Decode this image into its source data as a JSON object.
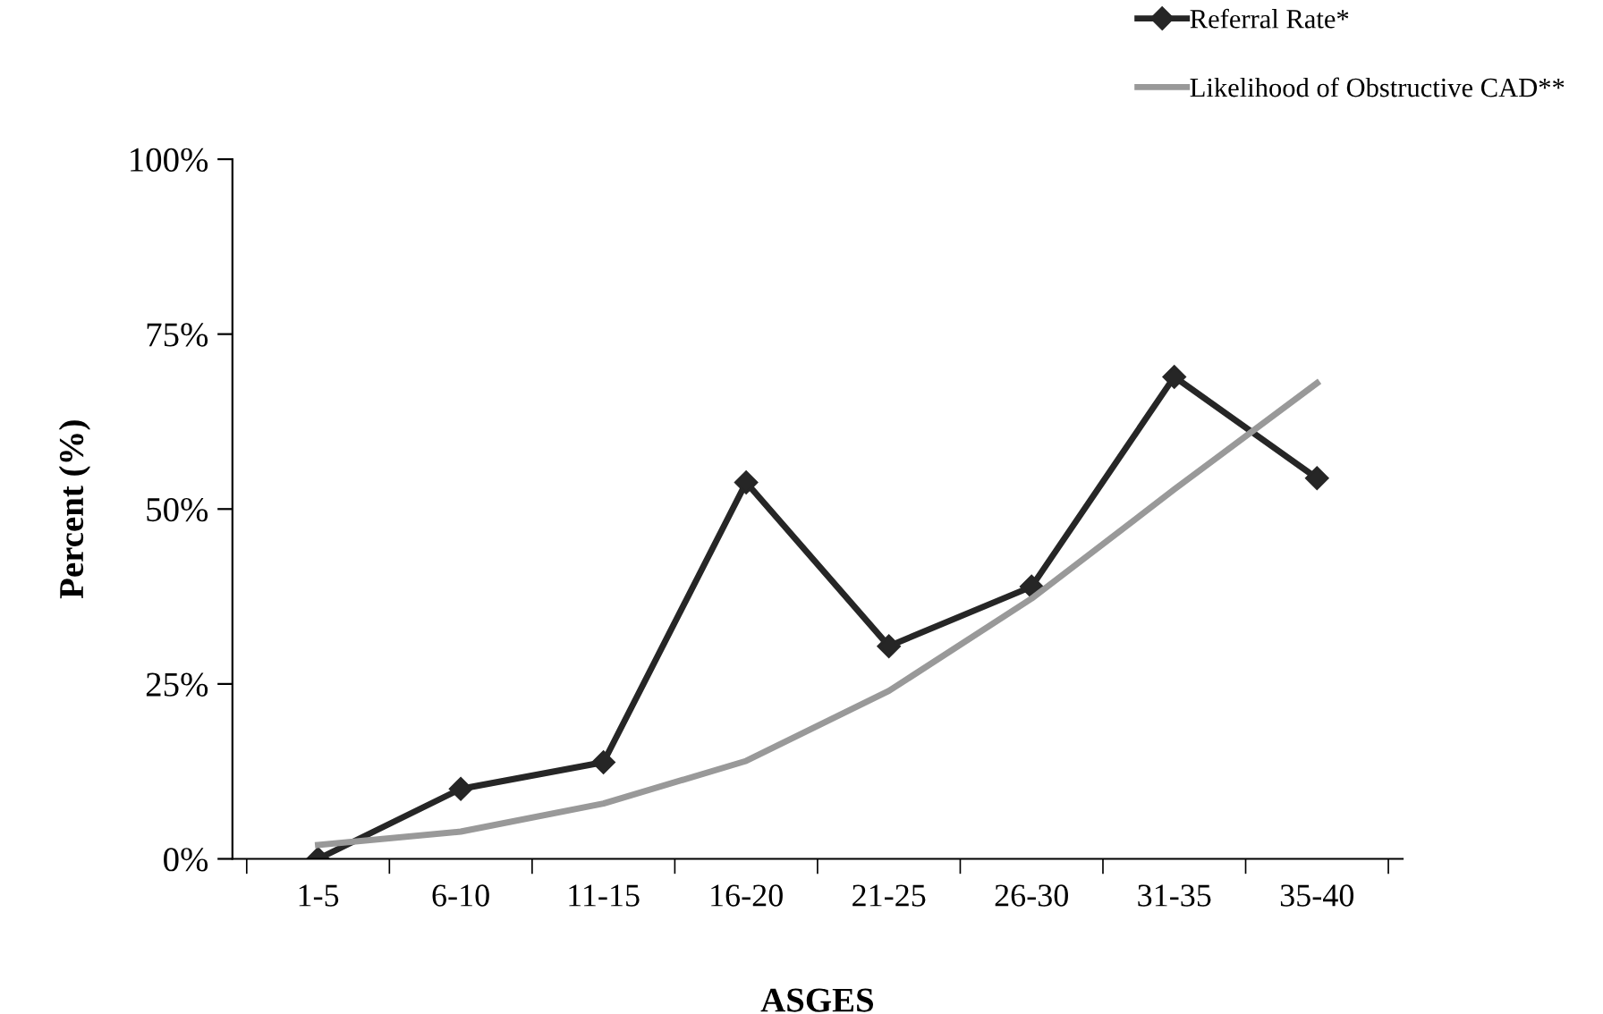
{
  "chart_data": {
    "type": "line",
    "xlabel": "ASGES",
    "ylabel": "Percent (%)",
    "categories": [
      "1-5",
      "6-10",
      "11-15",
      "16-20",
      "21-25",
      "26-30",
      "31-35",
      "35-40"
    ],
    "series": [
      {
        "name": "Referral Rate*",
        "color": "#262626",
        "marker": "diamond",
        "values": [
          0,
          10,
          13.8,
          53.8,
          30.4,
          38.9,
          68.9,
          54.4
        ]
      },
      {
        "name": "Likelihood of Obstructive CAD**",
        "color": "#999999",
        "marker": "none",
        "values": [
          2,
          3.9,
          7.9,
          14,
          24,
          37.2,
          52.8,
          68
        ]
      }
    ],
    "ylim": [
      0,
      100
    ],
    "yticks": [
      {
        "value": 0,
        "label": "0%"
      },
      {
        "value": 25,
        "label": "25%"
      },
      {
        "value": 50,
        "label": "50%"
      },
      {
        "value": 75,
        "label": "75%"
      },
      {
        "value": 100,
        "label": "100%"
      }
    ],
    "grid": false,
    "legend": "top right"
  }
}
